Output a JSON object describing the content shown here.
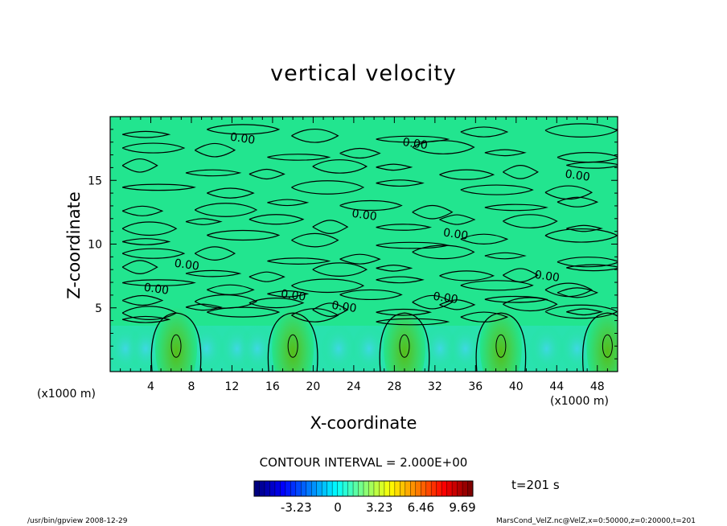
{
  "chart_data": {
    "type": "heatmap",
    "title": "vertical velocity",
    "xlabel": "X-coordinate",
    "ylabel": "Z-coordinate",
    "x_unit": "(x1000 m)",
    "x_unit_right": "(x1000 m)",
    "xlim": [
      0,
      50
    ],
    "ylim": [
      0,
      20
    ],
    "x_ticks": [
      "4",
      "8",
      "12",
      "16",
      "20",
      "24",
      "28",
      "32",
      "36",
      "40",
      "44",
      "48"
    ],
    "x_tick_values": [
      4,
      8,
      12,
      16,
      20,
      24,
      28,
      32,
      36,
      40,
      44,
      48
    ],
    "y_ticks": [
      "5",
      "10",
      "15"
    ],
    "y_tick_values": [
      5,
      10,
      15
    ],
    "contour_labels": [
      {
        "text": "0.00",
        "x": 13,
        "y": 18
      },
      {
        "text": "0.00",
        "x": 30,
        "y": 17.6
      },
      {
        "text": "0.00",
        "x": 46,
        "y": 15.1
      },
      {
        "text": "0.00",
        "x": 25,
        "y": 12
      },
      {
        "text": "0.00",
        "x": 34,
        "y": 10.5
      },
      {
        "text": "0.00",
        "x": 7.5,
        "y": 8.1
      },
      {
        "text": "0.00",
        "x": 4.5,
        "y": 6.2
      },
      {
        "text": "0.00",
        "x": 43,
        "y": 7.2
      },
      {
        "text": "0.00",
        "x": 18,
        "y": 5.7
      },
      {
        "text": "0.00",
        "x": 23,
        "y": 4.8
      },
      {
        "text": "0.00",
        "x": 33,
        "y": 5.5
      }
    ],
    "updraft_centers_x": [
      6.5,
      18,
      29,
      38.5,
      49
    ],
    "colorbar": {
      "ticks": [
        "-3.23",
        "0",
        "3.23",
        "6.46",
        "9.69"
      ],
      "tick_values": [
        -3.23,
        0,
        3.23,
        6.46,
        9.69
      ],
      "range": [
        -6.5,
        10.5
      ]
    },
    "contour_interval": "CONTOUR INTERVAL = 2.000E+00",
    "colors": {
      "background_field": "#22e58f",
      "updraft_outer": "#3ed45a",
      "updraft_core": "#55bd1a",
      "downdraft": "#3ed8e4"
    }
  },
  "time_label": "t=201 s",
  "footer_left": "/usr/bin/gpview   2008-12-29",
  "footer_right": "MarsCond_VelZ.nc@VelZ,x=0:50000,z=0:20000,t=201"
}
